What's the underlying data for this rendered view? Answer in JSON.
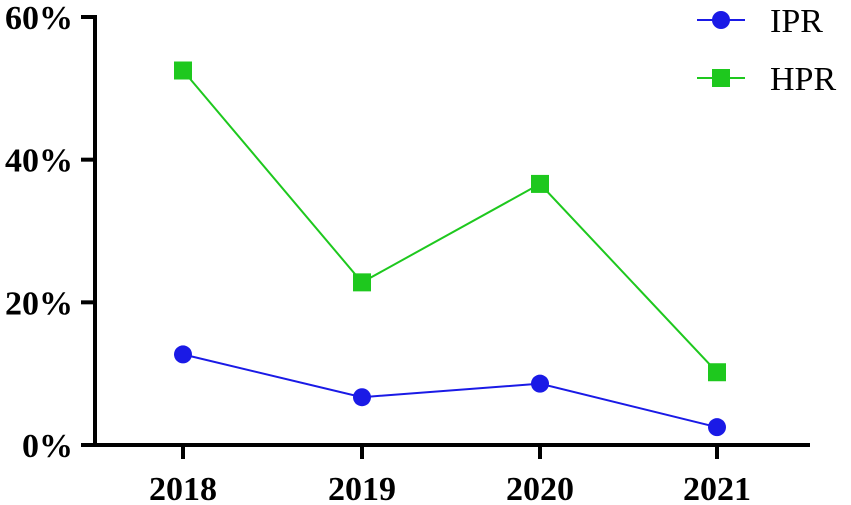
{
  "chart_data": {
    "type": "line",
    "categories": [
      "2018",
      "2019",
      "2020",
      "2021"
    ],
    "series": [
      {
        "name": "IPR",
        "values": [
          12.7,
          6.7,
          8.6,
          2.5
        ],
        "color": "#1a1ae6",
        "marker": "circle"
      },
      {
        "name": "HPR",
        "values": [
          52.5,
          22.8,
          36.6,
          10.2
        ],
        "color": "#1ec81e",
        "marker": "square"
      }
    ],
    "title": "",
    "xlabel": "",
    "ylabel": "",
    "ylim": [
      0,
      60
    ],
    "yticks": [
      0,
      20,
      40,
      60
    ],
    "ytick_labels": [
      "0%",
      "20%",
      "40%",
      "60%"
    ],
    "grid": false,
    "legend_position": "top-right"
  }
}
